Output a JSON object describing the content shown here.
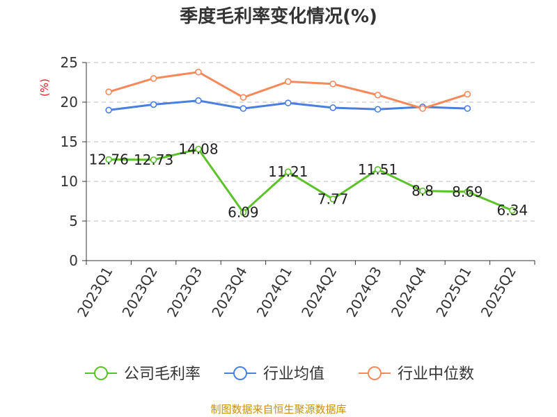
{
  "chart_data": {
    "type": "line",
    "title": "季度毛利率变化情况(%)",
    "unit_label": "(%)",
    "categories": [
      "2023Q1",
      "2023Q2",
      "2023Q3",
      "2023Q4",
      "2024Q1",
      "2024Q2",
      "2024Q3",
      "2024Q4",
      "2025Q1",
      "2025Q2"
    ],
    "ylim": [
      0,
      25
    ],
    "yticks": [
      0,
      5,
      10,
      15,
      20,
      25
    ],
    "grid": true,
    "legend_position": "bottom",
    "series": [
      {
        "name": "公司毛利率",
        "color": "#5cc22a",
        "values": [
          12.76,
          12.73,
          14.08,
          6.09,
          11.21,
          7.77,
          11.51,
          8.8,
          8.69,
          6.34
        ],
        "data_labels": [
          "12.76",
          "12.73",
          "14.08",
          "6.09",
          "11.21",
          "7.77",
          "11.51",
          "8.8",
          "8.69",
          "6.34"
        ]
      },
      {
        "name": "行业均值",
        "color": "#4a7fe0",
        "values": [
          19.0,
          19.7,
          20.2,
          19.2,
          19.9,
          19.3,
          19.1,
          19.4,
          19.2,
          null
        ]
      },
      {
        "name": "行业中位数",
        "color": "#f5895a",
        "values": [
          21.3,
          23.0,
          23.8,
          20.6,
          22.6,
          22.3,
          20.9,
          19.2,
          21.0,
          null
        ]
      }
    ]
  },
  "source": {
    "text": "制图数据来自恒生聚源数据库",
    "color": "#c89010"
  }
}
